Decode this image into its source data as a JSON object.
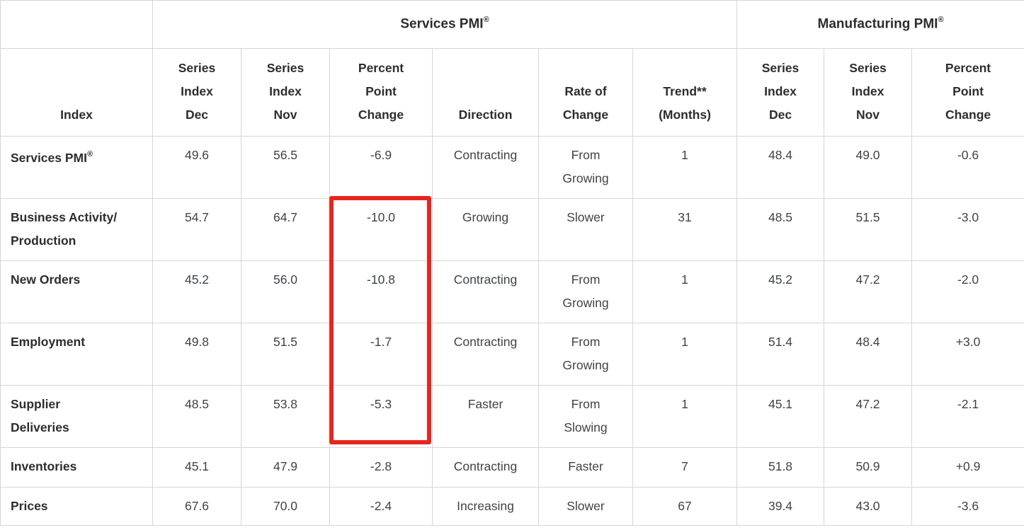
{
  "highlight_color": "#e8251c",
  "registered_mark": "®",
  "table": {
    "groups": {
      "services": "Services PMI",
      "manufacturing": "Manufacturing PMI"
    },
    "columns": [
      "Index",
      "Series\nIndex\nDec",
      "Series\nIndex\nNov",
      "Percent\nPoint\nChange",
      "Direction",
      "Rate of\nChange",
      "Trend**\n(Months)",
      "Series\nIndex\nDec",
      "Series\nIndex\nNov",
      "Percent\nPoint\nChange"
    ],
    "rows": [
      {
        "label": "Services PMI",
        "label_sup": "®",
        "cells": [
          "49.6",
          "56.5",
          "-6.9",
          "Contracting",
          "From\nGrowing",
          "1",
          "48.4",
          "49.0",
          "-0.6"
        ]
      },
      {
        "label": "Business Activity/\nProduction",
        "label_sup": "",
        "cells": [
          "54.7",
          "64.7",
          "-10.0",
          "Growing",
          "Slower",
          "31",
          "48.5",
          "51.5",
          "-3.0"
        ]
      },
      {
        "label": "New Orders",
        "label_sup": "",
        "cells": [
          "45.2",
          "56.0",
          "-10.8",
          "Contracting",
          "From\nGrowing",
          "1",
          "45.2",
          "47.2",
          "-2.0"
        ]
      },
      {
        "label": "Employment",
        "label_sup": "",
        "cells": [
          "49.8",
          "51.5",
          "-1.7",
          "Contracting",
          "From\nGrowing",
          "1",
          "51.4",
          "48.4",
          "+3.0"
        ]
      },
      {
        "label": "Supplier\nDeliveries",
        "label_sup": "",
        "cells": [
          "48.5",
          "53.8",
          "-5.3",
          "Faster",
          "From\nSlowing",
          "1",
          "45.1",
          "47.2",
          "-2.1"
        ]
      },
      {
        "label": "Inventories",
        "label_sup": "",
        "cells": [
          "45.1",
          "47.9",
          "-2.8",
          "Contracting",
          "Faster",
          "7",
          "51.8",
          "50.9",
          "+0.9"
        ]
      },
      {
        "label": "Prices",
        "label_sup": "",
        "cells": [
          "67.6",
          "70.0",
          "-2.4",
          "Increasing",
          "Slower",
          "67",
          "39.4",
          "43.0",
          "-3.6"
        ]
      }
    ]
  }
}
